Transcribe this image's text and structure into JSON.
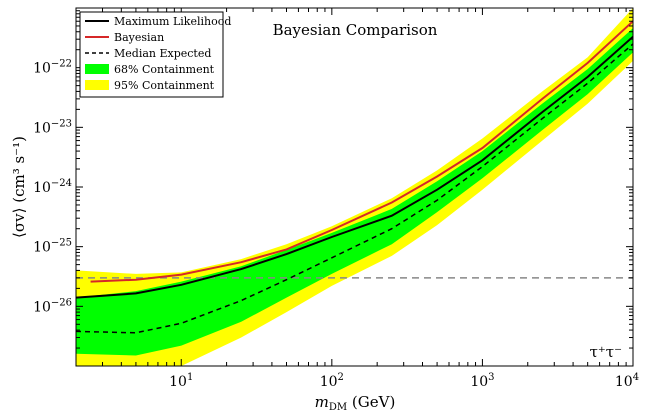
{
  "chart_data": {
    "type": "area",
    "title": "Bayesian Comparison",
    "annotation": "τ⁺τ⁻",
    "xlabel": {
      "sym": "m",
      "sub": "DM",
      "unit": " (GeV)"
    },
    "ylabel": "⟨σv⟩ (cm³ s⁻¹)",
    "xscale": "log",
    "yscale": "log",
    "xlim": [
      2,
      10000
    ],
    "ylim": [
      1e-27,
      1e-21
    ],
    "x_ticks": [
      {
        "value": 10,
        "base": "10",
        "exp": "1"
      },
      {
        "value": 100,
        "base": "10",
        "exp": "2"
      },
      {
        "value": 1000,
        "base": "10",
        "exp": "3"
      },
      {
        "value": 10000,
        "base": "10",
        "exp": "4"
      }
    ],
    "y_ticks": [
      {
        "value": 1e-26,
        "base": "10",
        "exp": "−26"
      },
      {
        "value": 1e-25,
        "base": "10",
        "exp": "−25"
      },
      {
        "value": 1e-24,
        "base": "10",
        "exp": "−24"
      },
      {
        "value": 1e-23,
        "base": "10",
        "exp": "−23"
      },
      {
        "value": 1e-22,
        "base": "10",
        "exp": "−22"
      }
    ],
    "legend_position": "top-left",
    "grid": false,
    "x": [
      2,
      5,
      10,
      25,
      50,
      100,
      250,
      500,
      1000,
      2500,
      5000,
      10000
    ],
    "series": [
      {
        "name": "Maximum Likelihood",
        "style": "solid",
        "color": "#000000",
        "values": [
          1.4e-26,
          1.65e-26,
          2.3e-26,
          4.2e-26,
          7.5e-26,
          1.45e-25,
          3.3e-25,
          9e-25,
          2.8e-24,
          1.8e-23,
          7e-23,
          3.3e-22
        ]
      },
      {
        "name": "Bayesian",
        "style": "solid",
        "color": "#d62728",
        "x": [
          2.5,
          5,
          10,
          25,
          50,
          100,
          250,
          500,
          1000,
          2500,
          5000,
          10000
        ],
        "values": [
          2.6e-26,
          2.8e-26,
          3.4e-26,
          5.5e-26,
          9e-26,
          1.9e-25,
          5.5e-25,
          1.5e-24,
          4.5e-24,
          3e-23,
          1.2e-22,
          6e-22
        ]
      },
      {
        "name": "Median Expected",
        "style": "dashed",
        "color": "#000000",
        "values": [
          3.8e-27,
          3.6e-27,
          5.2e-27,
          1.25e-26,
          2.8e-26,
          6.5e-26,
          2e-25,
          6e-25,
          2.2e-24,
          1.4e-23,
          5.5e-23,
          2.5e-22
        ]
      }
    ],
    "bands": [
      {
        "name": "95% Containment",
        "color": "#ffff00",
        "low": [
          1e-27,
          1e-27,
          1e-27,
          3e-27,
          8e-27,
          2.2e-26,
          7e-26,
          2.3e-25,
          9e-25,
          6e-24,
          2.5e-23,
          1.3e-22
        ],
        "high": [
          4e-26,
          3.5e-26,
          3.7e-26,
          6.2e-26,
          1.1e-25,
          2.2e-25,
          6.5e-25,
          1.9e-24,
          6.5e-24,
          4e-23,
          1.5e-22,
          1e-21
        ]
      },
      {
        "name": "68% Containment",
        "color": "#00ff00",
        "low": [
          1.6e-27,
          1.5e-27,
          2.2e-27,
          5.5e-27,
          1.4e-26,
          3.5e-26,
          1.1e-25,
          3.8e-25,
          1.4e-24,
          9e-24,
          3.6e-23,
          1.8e-22
        ],
        "high": [
          1.4e-26,
          1.8e-26,
          2.6e-26,
          4.7e-26,
          8.8e-26,
          1.7e-25,
          4.3e-25,
          1.25e-24,
          4e-24,
          2.5e-23,
          9.5e-23,
          4.6e-22
        ]
      }
    ],
    "reference_line": {
      "value": 3e-26,
      "style": "dashed",
      "color": "#888888"
    },
    "legend": [
      {
        "label": "Maximum Likelihood",
        "kind": "line",
        "color": "#000000",
        "dash": false
      },
      {
        "label": "Bayesian",
        "kind": "line",
        "color": "#d62728",
        "dash": false
      },
      {
        "label": "Median Expected",
        "kind": "line",
        "color": "#000000",
        "dash": true
      },
      {
        "label": "68% Containment",
        "kind": "patch",
        "color": "#00ff00"
      },
      {
        "label": "95% Containment",
        "kind": "patch",
        "color": "#ffff00"
      }
    ]
  }
}
